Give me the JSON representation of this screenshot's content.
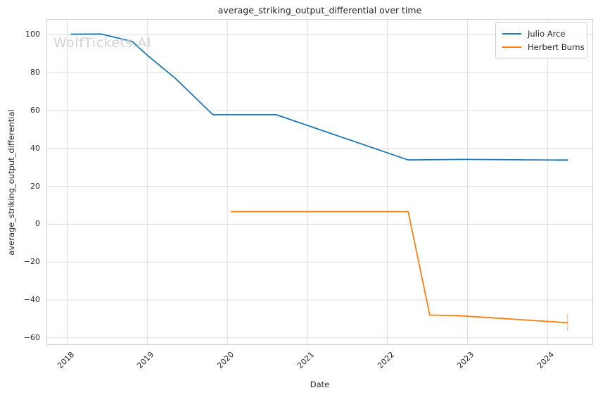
{
  "watermark": "WolfTickets.AI",
  "colors": {
    "grid": "#dcdcdc",
    "spine": "#d0d0d0",
    "text": "#262626",
    "watermark": "#d2d2d2"
  },
  "chart_data": {
    "type": "line",
    "title": "average_striking_output_differential over time",
    "xlabel": "Date",
    "ylabel": "average_striking_output_differential",
    "xlim": [
      2017.74,
      2024.57
    ],
    "ylim": [
      -63.8,
      108.3
    ],
    "grid": true,
    "legend_position": "upper right",
    "x_ticks": [
      {
        "value": 2018,
        "label": "2018"
      },
      {
        "value": 2019,
        "label": "2019"
      },
      {
        "value": 2020,
        "label": "2020"
      },
      {
        "value": 2021,
        "label": "2021"
      },
      {
        "value": 2022,
        "label": "2022"
      },
      {
        "value": 2023,
        "label": "2023"
      },
      {
        "value": 2024,
        "label": "2024"
      }
    ],
    "y_ticks": [
      {
        "value": 100,
        "label": "100"
      },
      {
        "value": 80,
        "label": "80"
      },
      {
        "value": 60,
        "label": "60"
      },
      {
        "value": 40,
        "label": "40"
      },
      {
        "value": 20,
        "label": "20"
      },
      {
        "value": 0,
        "label": "0"
      },
      {
        "value": -20,
        "label": "−20"
      },
      {
        "value": -40,
        "label": "−40"
      },
      {
        "value": -60,
        "label": "−60"
      }
    ],
    "series": [
      {
        "name": "Julio Arce",
        "color": "#1f77b4",
        "end_cap": "x",
        "points": [
          [
            2018.05,
            100.3
          ],
          [
            2018.42,
            100.4
          ],
          [
            2018.81,
            96.5
          ],
          [
            2019.0,
            89.2
          ],
          [
            2019.35,
            77.0
          ],
          [
            2019.82,
            57.8
          ],
          [
            2020.61,
            57.8
          ],
          [
            2022.26,
            33.9
          ],
          [
            2022.96,
            34.2
          ],
          [
            2024.25,
            33.8
          ]
        ]
      },
      {
        "name": "Herbert Burns",
        "color": "#ff7f0e",
        "end_cap": "y",
        "points": [
          [
            2020.05,
            6.6
          ],
          [
            2022.26,
            6.6
          ],
          [
            2022.53,
            -48.0
          ],
          [
            2022.89,
            -48.3
          ],
          [
            2024.25,
            -52.0
          ]
        ]
      }
    ]
  }
}
